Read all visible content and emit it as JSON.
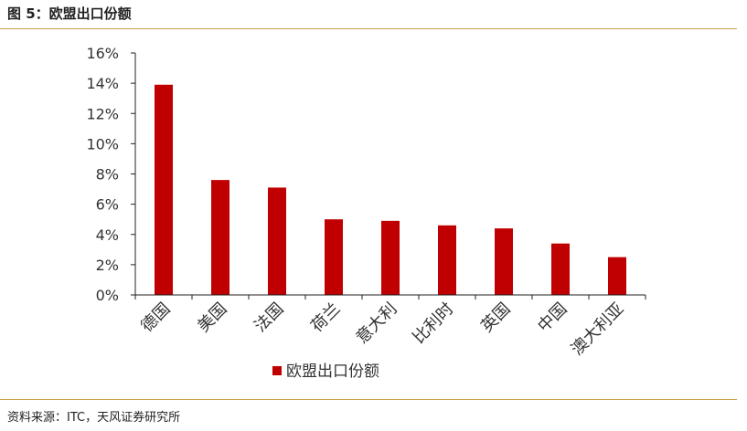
{
  "header": {
    "figure_title": "图 5：欧盟出口份额"
  },
  "footer": {
    "source": "资料来源：ITC，天风证券研究所"
  },
  "colors": {
    "bar": "#c00000",
    "rule": "#c9a24a",
    "axis": "#222222"
  },
  "chart_data": {
    "type": "bar",
    "categories": [
      "德国",
      "美国",
      "法国",
      "荷兰",
      "意大利",
      "比利时",
      "英国",
      "中国",
      "澳大利亚"
    ],
    "series": [
      {
        "name": "欧盟出口份额",
        "values": [
          13.9,
          7.6,
          7.1,
          5.0,
          4.9,
          4.6,
          4.4,
          3.4,
          2.5
        ]
      }
    ],
    "ylim": [
      0,
      16
    ],
    "yticks": [
      "0%",
      "2%",
      "4%",
      "6%",
      "8%",
      "10%",
      "12%",
      "14%",
      "16%"
    ],
    "grid": false,
    "legend": "bottom-center"
  }
}
